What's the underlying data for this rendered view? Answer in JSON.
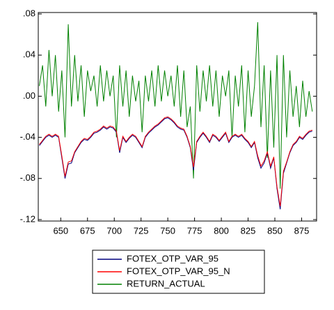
{
  "chart_data": {
    "type": "line",
    "x": [
      630,
      633,
      636,
      639,
      642,
      645,
      648,
      651,
      654,
      657,
      660,
      663,
      666,
      669,
      672,
      675,
      678,
      681,
      684,
      687,
      690,
      693,
      696,
      699,
      702,
      705,
      708,
      711,
      714,
      717,
      720,
      723,
      726,
      729,
      732,
      735,
      738,
      741,
      744,
      747,
      750,
      753,
      756,
      759,
      762,
      765,
      768,
      771,
      774,
      777,
      780,
      783,
      786,
      789,
      792,
      795,
      798,
      801,
      804,
      807,
      810,
      813,
      816,
      819,
      822,
      825,
      828,
      831,
      834,
      837,
      840,
      843,
      846,
      849,
      852,
      855,
      858,
      861,
      864,
      867,
      870,
      873,
      876,
      879,
      882,
      885
    ],
    "series": [
      {
        "name": "FOTEX_OTP_VAR_95",
        "color": "#00007f",
        "values": [
          -0.048,
          -0.044,
          -0.04,
          -0.038,
          -0.04,
          -0.038,
          -0.04,
          -0.06,
          -0.08,
          -0.066,
          -0.065,
          -0.055,
          -0.05,
          -0.045,
          -0.042,
          -0.043,
          -0.04,
          -0.036,
          -0.035,
          -0.033,
          -0.03,
          -0.032,
          -0.03,
          -0.031,
          -0.035,
          -0.055,
          -0.04,
          -0.045,
          -0.041,
          -0.038,
          -0.04,
          -0.045,
          -0.05,
          -0.04,
          -0.036,
          -0.033,
          -0.03,
          -0.028,
          -0.025,
          -0.022,
          -0.021,
          -0.023,
          -0.026,
          -0.03,
          -0.032,
          -0.033,
          -0.04,
          -0.05,
          -0.072,
          -0.045,
          -0.04,
          -0.036,
          -0.04,
          -0.045,
          -0.038,
          -0.04,
          -0.044,
          -0.04,
          -0.036,
          -0.045,
          -0.04,
          -0.038,
          -0.04,
          -0.038,
          -0.042,
          -0.045,
          -0.05,
          -0.045,
          -0.06,
          -0.07,
          -0.065,
          -0.055,
          -0.07,
          -0.06,
          -0.09,
          -0.11,
          -0.075,
          -0.065,
          -0.055,
          -0.048,
          -0.045,
          -0.04,
          -0.042,
          -0.038,
          -0.035,
          -0.034
        ]
      },
      {
        "name": "FOTEX_OTP_VAR_95_N",
        "color": "#ff0000",
        "values": [
          -0.047,
          -0.043,
          -0.039,
          -0.037,
          -0.039,
          -0.037,
          -0.039,
          -0.058,
          -0.078,
          -0.064,
          -0.063,
          -0.054,
          -0.049,
          -0.044,
          -0.041,
          -0.042,
          -0.039,
          -0.035,
          -0.034,
          -0.032,
          -0.029,
          -0.031,
          -0.029,
          -0.03,
          -0.034,
          -0.053,
          -0.039,
          -0.044,
          -0.04,
          -0.037,
          -0.039,
          -0.044,
          -0.049,
          -0.039,
          -0.035,
          -0.032,
          -0.029,
          -0.027,
          -0.024,
          -0.021,
          -0.02,
          -0.022,
          -0.025,
          -0.029,
          -0.031,
          -0.032,
          -0.039,
          -0.049,
          -0.069,
          -0.044,
          -0.039,
          -0.035,
          -0.039,
          -0.044,
          -0.037,
          -0.039,
          -0.043,
          -0.039,
          -0.035,
          -0.044,
          -0.039,
          -0.037,
          -0.039,
          -0.037,
          -0.041,
          -0.044,
          -0.049,
          -0.044,
          -0.058,
          -0.068,
          -0.063,
          -0.054,
          -0.068,
          -0.059,
          -0.088,
          -0.107,
          -0.073,
          -0.064,
          -0.054,
          -0.047,
          -0.044,
          -0.039,
          -0.041,
          -0.037,
          -0.034,
          -0.033
        ]
      },
      {
        "name": "RETURN_ACTUAL",
        "color": "#008000",
        "values": [
          0.01,
          0.03,
          -0.01,
          0.045,
          0,
          0.04,
          -0.015,
          0.025,
          -0.04,
          0.07,
          -0.01,
          0.04,
          -0.005,
          0.03,
          -0.02,
          0.025,
          0.005,
          0.02,
          -0.01,
          0.03,
          -0.005,
          0.025,
          0,
          0.02,
          -0.04,
          0.03,
          -0.01,
          0.025,
          -0.02,
          0.02,
          -0.005,
          0.015,
          -0.035,
          0.02,
          -0.005,
          0.025,
          -0.01,
          0.03,
          -0.005,
          0.025,
          0,
          0.02,
          -0.01,
          0.03,
          -0.02,
          0.025,
          -0.03,
          -0.01,
          -0.08,
          0.03,
          -0.015,
          0.025,
          -0.005,
          0.03,
          -0.01,
          0.025,
          -0.02,
          0.02,
          0,
          0.025,
          -0.04,
          0.02,
          -0.01,
          0.03,
          -0.035,
          0.025,
          -0.02,
          0.01,
          0.072,
          -0.03,
          0.03,
          -0.06,
          0.025,
          -0.05,
          0.04,
          -0.09,
          0.04,
          -0.04,
          0.025,
          -0.02,
          0.01,
          -0.03,
          0.015,
          -0.02,
          0.005,
          -0.015
        ]
      }
    ],
    "xlim": [
      629,
      889
    ],
    "xticks": [
      650,
      675,
      700,
      725,
      750,
      775,
      800,
      825,
      850,
      875
    ],
    "ylim": [
      -0.1214,
      0.0814
    ],
    "yticks": [
      {
        "value": 0.08,
        "label": ".08"
      },
      {
        "value": 0.04,
        "label": ".04"
      },
      {
        "value": 0,
        "label": ".00"
      },
      {
        "value": -0.04,
        "label": "-.04"
      },
      {
        "value": -0.08,
        "label": "-.08"
      },
      {
        "value": -0.12,
        "label": "-.12"
      }
    ],
    "grid": false,
    "legend": "below"
  }
}
